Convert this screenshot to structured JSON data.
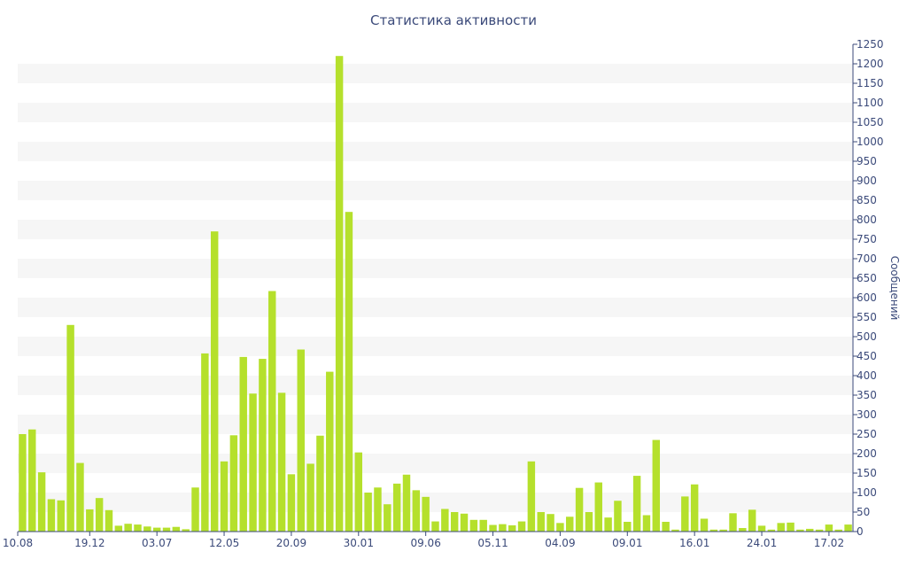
{
  "chart_data": {
    "type": "bar",
    "title": "Статистика активности",
    "ylabel": "Сообщений",
    "ylim": [
      0,
      1250
    ],
    "y_ticks": [
      0,
      50,
      100,
      150,
      200,
      250,
      300,
      350,
      400,
      450,
      500,
      550,
      600,
      650,
      700,
      750,
      800,
      850,
      900,
      950,
      1000,
      1050,
      1100,
      1150,
      1200,
      1250
    ],
    "x_tick_labels": [
      {
        "index": 0,
        "label": "10.08"
      },
      {
        "index": 7,
        "label": "19.12"
      },
      {
        "index": 14,
        "label": "03.07"
      },
      {
        "index": 21,
        "label": "12.05"
      },
      {
        "index": 28,
        "label": "20.09"
      },
      {
        "index": 35,
        "label": "30.01"
      },
      {
        "index": 42,
        "label": "09.06"
      },
      {
        "index": 49,
        "label": "05.11"
      },
      {
        "index": 56,
        "label": "04.09"
      },
      {
        "index": 63,
        "label": "09.01"
      },
      {
        "index": 70,
        "label": "16.01"
      },
      {
        "index": 77,
        "label": "24.01"
      },
      {
        "index": 84,
        "label": "17.02"
      }
    ],
    "values": [
      250,
      262,
      152,
      83,
      80,
      530,
      176,
      57,
      86,
      55,
      15,
      20,
      18,
      13,
      10,
      10,
      12,
      6,
      113,
      457,
      770,
      180,
      247,
      448,
      354,
      443,
      617,
      356,
      147,
      467,
      174,
      246,
      410,
      1220,
      820,
      203,
      100,
      113,
      70,
      123,
      146,
      106,
      89,
      26,
      58,
      50,
      46,
      30,
      30,
      17,
      19,
      16,
      26,
      180,
      50,
      45,
      22,
      38,
      112,
      50,
      126,
      36,
      79,
      25,
      143,
      42,
      235,
      25,
      5,
      90,
      121,
      33,
      5,
      5,
      47,
      9,
      56,
      15,
      5,
      22,
      23,
      5,
      7,
      5,
      18,
      5,
      18
    ],
    "grid": "horizontal-bands",
    "color": "#b5e02c",
    "axis_color": "#3b4a7a"
  }
}
